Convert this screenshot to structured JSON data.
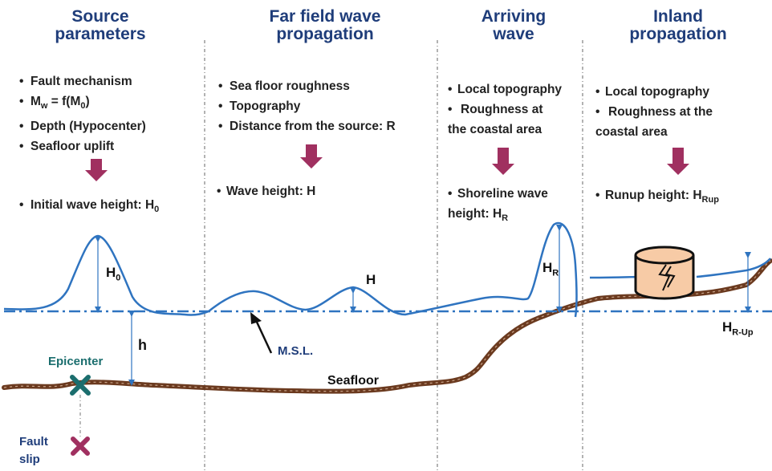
{
  "sections": {
    "source": {
      "title": [
        "Source",
        "parameters"
      ],
      "bullets": [
        "Fault mechanism",
        "Depth (Hypocenter)",
        "Seafloor uplift"
      ],
      "mw_main": "M",
      "mw_sub": "w",
      "mw_mid": " = f(M",
      "mw_sub2": "0",
      "mw_end": ")",
      "result_main": "Initial wave height: H",
      "result_sub": "0"
    },
    "far_field": {
      "title": [
        "Far field wave",
        "propagation"
      ],
      "bullets": [
        "Sea floor roughness",
        "Topography",
        "Distance from the source: R"
      ],
      "result": "Wave height: H"
    },
    "arriving": {
      "title": [
        "Arriving",
        "wave"
      ],
      "bullet1": "Local topography",
      "bullet2": [
        "Roughness at",
        "the coastal area"
      ],
      "result_lines": [
        "Shoreline wave",
        "height: H"
      ],
      "result_sub": "R"
    },
    "inland": {
      "title": [
        "Inland",
        "propagation"
      ],
      "bullet1": "Local topography",
      "bullet2": [
        "Roughness at the",
        "coastal area"
      ],
      "result_main": "Runup height: H",
      "result_sub": "Rup"
    }
  },
  "labels": {
    "H0_main": "H",
    "H0_sub": "0",
    "h": "h",
    "H": "H",
    "HR_main": "H",
    "HR_sub": "R",
    "HRUp_main": "H",
    "HRUp_sub": "R-Up",
    "msl": "M.S.L.",
    "seafloor": "Seafloor",
    "epicenter": "Epicenter",
    "fault": [
      "Fault",
      "slip"
    ]
  },
  "colors": {
    "title": "#1f3d7a",
    "water": "#2f74c0",
    "seafloor": "#6b3a1f",
    "arrow": "#a03060",
    "epicenter": "#1b6e6e",
    "fault": "#a03060",
    "tank": "#f7cba6"
  }
}
